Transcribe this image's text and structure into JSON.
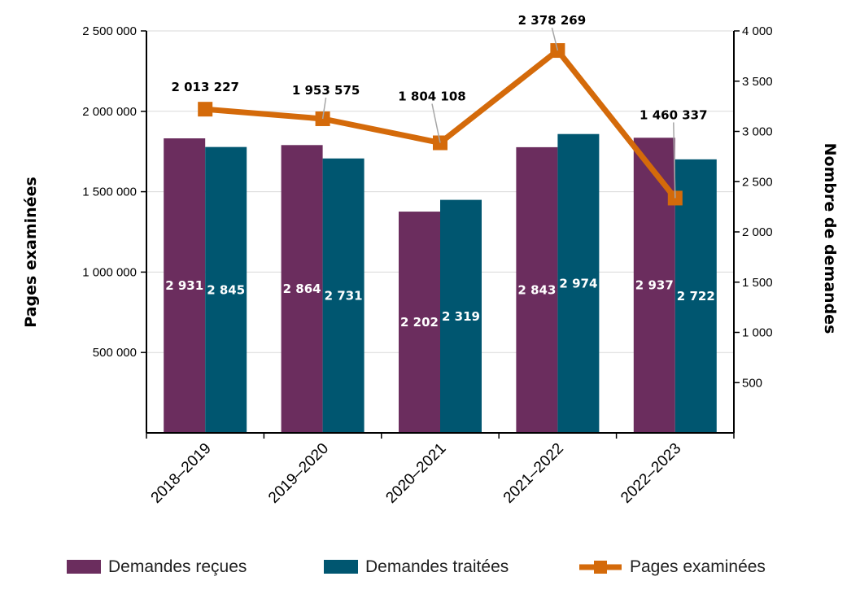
{
  "chart_data": {
    "type": "bar",
    "categories": [
      "2018–2019",
      "2019–2020",
      "2020–2021",
      "2021–2022",
      "2022–2023"
    ],
    "series": [
      {
        "name": "Demandes reçues",
        "axis": "right",
        "kind": "bar",
        "color": "#6b2d5e",
        "values": [
          2931,
          2864,
          2202,
          2843,
          2937
        ],
        "labels": [
          "2 931",
          "2 864",
          "2 202",
          "2 843",
          "2 937"
        ]
      },
      {
        "name": "Demandes traitées",
        "axis": "right",
        "kind": "bar",
        "color": "#005670",
        "values": [
          2845,
          2731,
          2319,
          2974,
          2722
        ],
        "labels": [
          "2 845",
          "2 731",
          "2 319",
          "2 974",
          "2 722"
        ]
      },
      {
        "name": "Pages examinées",
        "axis": "left",
        "kind": "line",
        "color": "#d46a0a",
        "values": [
          2013227,
          1953575,
          1804108,
          2378269,
          1460337
        ],
        "labels": [
          "2 013 227",
          "1 953 575",
          "1 804 108",
          "2 378 269",
          "1 460 337"
        ]
      }
    ],
    "ylabel": "Pages examinées",
    "y2label": "Nombre de demandes",
    "ylim": [
      0,
      2500000
    ],
    "y2lim": [
      0,
      4000
    ],
    "yticks": [
      {
        "v": 500000,
        "label": "500 000"
      },
      {
        "v": 1000000,
        "label": "1 000 000"
      },
      {
        "v": 1500000,
        "label": "1 500 000"
      },
      {
        "v": 2000000,
        "label": "2 000 000"
      },
      {
        "v": 2500000,
        "label": "2 500 000"
      }
    ],
    "y2ticks": [
      {
        "v": 500,
        "label": "500"
      },
      {
        "v": 1000,
        "label": "1 000"
      },
      {
        "v": 1500,
        "label": "1 500"
      },
      {
        "v": 2000,
        "label": "2 000"
      },
      {
        "v": 2500,
        "label": "2 500"
      },
      {
        "v": 3000,
        "label": "3 000"
      },
      {
        "v": 3500,
        "label": "3 500"
      },
      {
        "v": 4000,
        "label": "4 000"
      }
    ],
    "grid": true,
    "legend": "bottom"
  }
}
